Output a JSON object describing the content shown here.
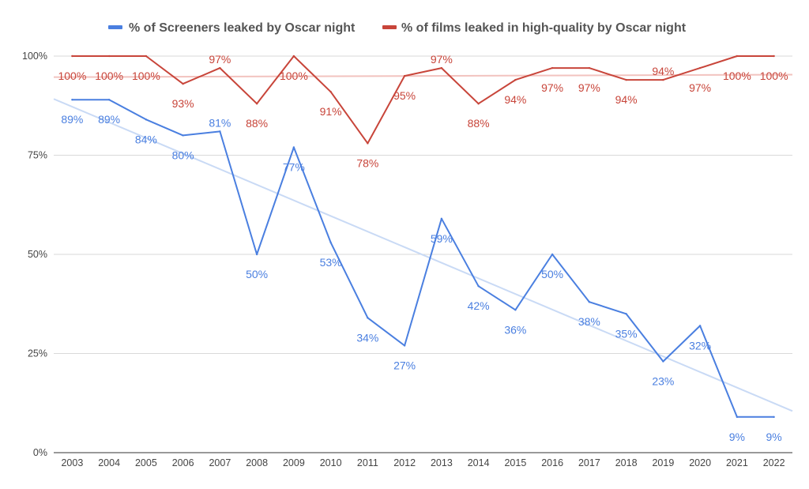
{
  "chart_data": {
    "type": "line",
    "categories": [
      "2003",
      "2004",
      "2005",
      "2006",
      "2007",
      "2008",
      "2009",
      "2010",
      "2011",
      "2012",
      "2013",
      "2014",
      "2015",
      "2016",
      "2017",
      "2018",
      "2019",
      "2020",
      "2021",
      "2022"
    ],
    "series": [
      {
        "name": "% of Screeners leaked by Oscar night",
        "color": "#4a7fe0",
        "values": [
          89,
          89,
          84,
          80,
          81,
          50,
          77,
          53,
          34,
          27,
          59,
          42,
          36,
          50,
          38,
          35,
          23,
          32,
          9,
          9
        ],
        "labels": [
          "89%",
          "89%",
          "84%",
          "80%",
          "81%",
          "50%",
          "77%",
          "53%",
          "34%",
          "27%",
          "59%",
          "42%",
          "36%",
          "50%",
          "38%",
          "35%",
          "23%",
          "32%",
          "9%",
          "9%"
        ]
      },
      {
        "name": "% of films leaked in high-quality by Oscar night",
        "color": "#c8453a",
        "values": [
          100,
          100,
          100,
          93,
          97,
          88,
          100,
          91,
          78,
          95,
          97,
          88,
          94,
          97,
          97,
          94,
          94,
          97,
          100,
          100
        ],
        "labels": [
          "100%",
          "100%",
          "100%",
          "93%",
          "97%",
          "88%",
          "100%",
          "91%",
          "78%",
          "95%",
          "97%",
          "88%",
          "94%",
          "97%",
          "97%",
          "94%",
          "94%",
          "97%",
          "100%",
          "100%"
        ]
      }
    ],
    "trendlines": [
      {
        "series": "% of Screeners leaked by Oscar night",
        "type": "linear",
        "color": "#c9daf5"
      },
      {
        "series": "% of films leaked in high-quality by Oscar night",
        "type": "linear",
        "color": "#f2c3bf"
      }
    ],
    "y_ticks": [
      "0%",
      "25%",
      "50%",
      "75%",
      "100%"
    ],
    "ylim": [
      0,
      100
    ],
    "grid": true,
    "legend_position": "top"
  }
}
